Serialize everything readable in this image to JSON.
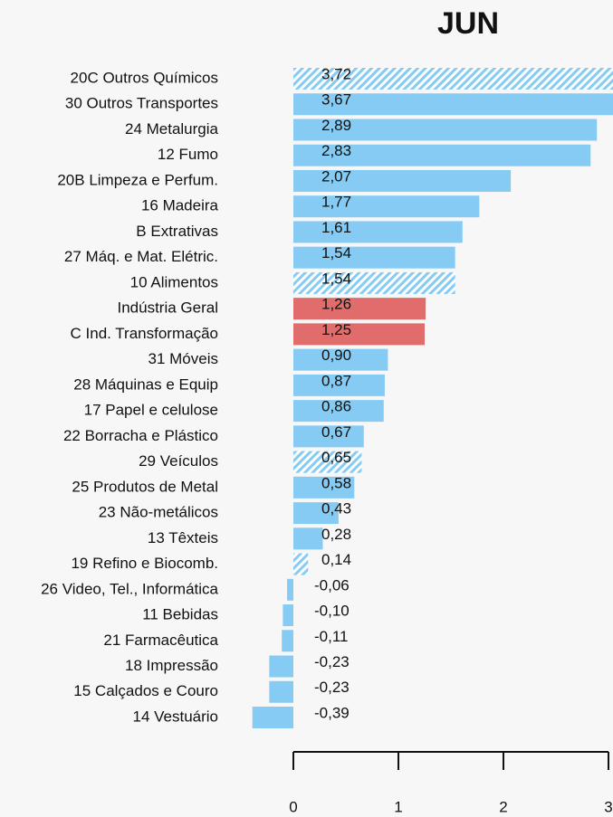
{
  "chart_data": {
    "type": "bar",
    "orientation": "horizontal",
    "title": "JUN",
    "categories": [
      "20C  Outros Químicos",
      "30  Outros Transportes",
      "24  Metalurgia",
      "12  Fumo",
      "20B  Limpeza e Perfum.",
      "16  Madeira",
      "B  Extrativas",
      "27  Máq. e Mat. Elétric.",
      "10  Alimentos",
      "Indústria Geral",
      "C  Ind. Transformação",
      "31  Móveis",
      "28  Máquinas e Equip",
      "17  Papel e celulose",
      "22  Borracha e Plástico",
      "29  Veículos",
      "25  Produtos de Metal",
      "23  Não-metálicos",
      "13  Têxteis",
      "19  Refino e Biocomb.",
      "26  Video, Tel., Informática",
      "11  Bebidas",
      "21  Farmacêutica",
      "18  Impressão",
      "15  Calçados e Couro",
      "14  Vestuário"
    ],
    "values": [
      3.72,
      3.67,
      2.89,
      2.83,
      2.07,
      1.77,
      1.61,
      1.54,
      1.54,
      1.26,
      1.25,
      0.9,
      0.87,
      0.86,
      0.67,
      0.65,
      0.58,
      0.43,
      0.28,
      0.14,
      -0.06,
      -0.1,
      -0.11,
      -0.23,
      -0.23,
      -0.39
    ],
    "value_labels": [
      "3,72",
      "3,67",
      "2,89",
      "2,83",
      "2,07",
      "1,77",
      "1,61",
      "1,54",
      "1,54",
      "1,26",
      "1,25",
      "0,90",
      "0,87",
      "0,86",
      "0,67",
      "0,65",
      "0,58",
      "0,43",
      "0,28",
      "0,14",
      "-0,06",
      "-0,10",
      "-0,11",
      "-0,23",
      "-0,23",
      "-0,39"
    ],
    "colors": [
      "#85cbf3",
      "#85cbf3",
      "#85cbf3",
      "#85cbf3",
      "#85cbf3",
      "#85cbf3",
      "#85cbf3",
      "#85cbf3",
      "#85cbf3",
      "#e06c6c",
      "#e06c6c",
      "#85cbf3",
      "#85cbf3",
      "#85cbf3",
      "#85cbf3",
      "#85cbf3",
      "#85cbf3",
      "#85cbf3",
      "#85cbf3",
      "#85cbf3",
      "#85cbf3",
      "#85cbf3",
      "#85cbf3",
      "#85cbf3",
      "#85cbf3",
      "#85cbf3"
    ],
    "hatched": [
      true,
      false,
      false,
      false,
      false,
      false,
      false,
      false,
      true,
      false,
      false,
      false,
      false,
      false,
      false,
      true,
      false,
      false,
      false,
      true,
      false,
      false,
      false,
      false,
      false,
      false
    ],
    "xlim": [
      0,
      3
    ],
    "xticks": [
      0,
      1,
      2,
      3
    ]
  }
}
